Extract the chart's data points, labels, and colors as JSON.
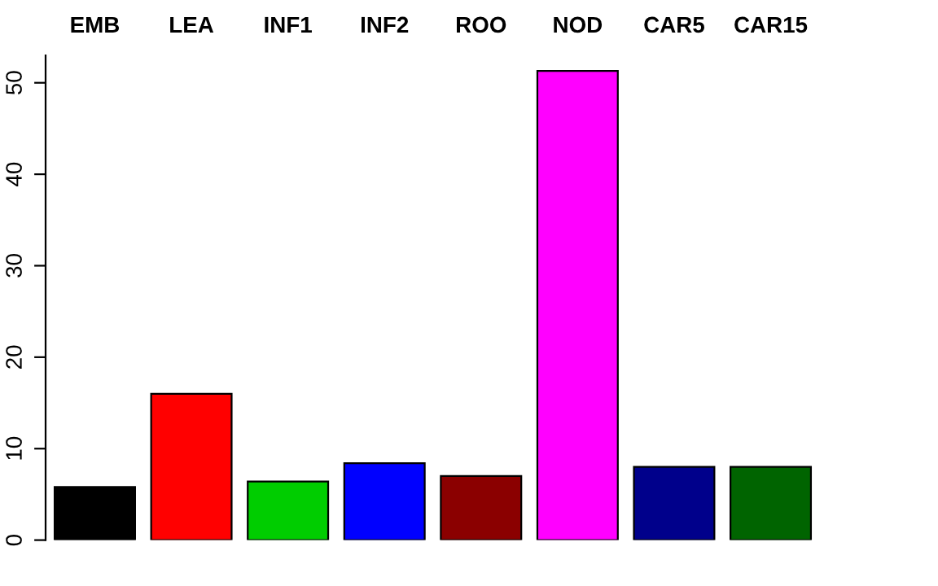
{
  "chart_data": {
    "type": "bar",
    "categories": [
      "EMB",
      "LEA",
      "INF1",
      "INF2",
      "ROO",
      "NOD",
      "CAR5",
      "CAR15"
    ],
    "values": [
      5.8,
      16.0,
      6.4,
      8.4,
      7.0,
      51.3,
      8.0,
      8.0
    ],
    "colors": [
      "#000000",
      "#ff0000",
      "#00cd00",
      "#0000ff",
      "#8b0000",
      "#ff00ff",
      "#00008b",
      "#006400"
    ],
    "ylim": [
      0,
      53
    ],
    "yticks": [
      0,
      10,
      20,
      30,
      40,
      50
    ],
    "grid": false
  }
}
